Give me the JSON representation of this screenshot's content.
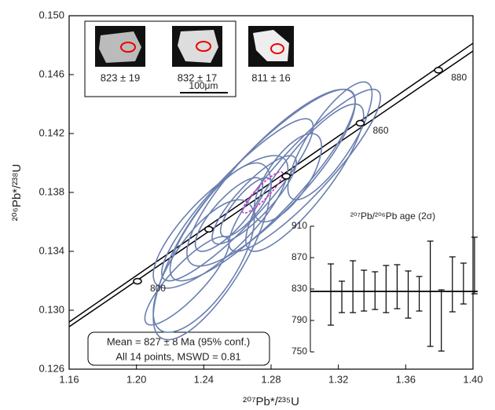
{
  "chart_data": {
    "type": "concordia",
    "x_label": "²⁰⁷Pb*/²³⁵U",
    "y_label": "²⁰⁶Pb*/²³⁸U",
    "xlim": [
      1.16,
      1.4
    ],
    "ylim": [
      0.126,
      0.15
    ],
    "xticks": [
      1.16,
      {
        "value": 1.2,
        "label": "1.20"
      },
      1.24,
      1.28,
      1.32,
      1.36,
      {
        "value": 1.4,
        "label": "1.40"
      }
    ],
    "yticks": [
      0.126,
      {
        "value": 0.13,
        "label": "0.130"
      },
      0.134,
      0.138,
      0.142,
      0.146,
      {
        "value": 0.15,
        "label": "0.150"
      }
    ],
    "concordia": {
      "upper": {
        "x": [
          1.16,
          1.4
        ],
        "y": [
          0.1292,
          0.14813
        ]
      },
      "lower": {
        "x": [
          1.16,
          1.4
        ],
        "y": [
          0.12888,
          0.1476
        ]
      }
    },
    "markers": {
      "x": [
        1.2006,
        1.243,
        1.289,
        1.333,
        1.3795
      ],
      "y": [
        0.13197,
        0.1355,
        0.1391,
        0.1427,
        0.1463
      ],
      "labels": [
        800,
        null,
        null,
        860,
        880
      ]
    },
    "ellipses": {
      "color": "#6b7fb0",
      "x": [
        1.275,
        1.28,
        1.26,
        1.25,
        1.245,
        1.24,
        1.3,
        1.315,
        1.27,
        1.255,
        1.29,
        1.23,
        1.265,
        1.3
      ],
      "y": [
        0.1385,
        0.139,
        0.1375,
        0.136,
        0.134,
        0.133,
        0.139,
        0.1415,
        0.1375,
        0.1365,
        0.139,
        0.132,
        0.137,
        0.1395
      ],
      "sx": [
        0.055,
        0.05,
        0.045,
        0.04,
        0.035,
        0.03,
        0.035,
        0.025,
        0.025,
        0.02,
        0.02,
        0.025,
        0.015,
        0.045
      ],
      "sy": [
        0.0065,
        0.006,
        0.0055,
        0.0045,
        0.006,
        0.0045,
        0.005,
        0.004,
        0.003,
        0.0025,
        0.003,
        0.003,
        0.002,
        0.0055
      ],
      "rho": [
        0.88,
        0.85,
        0.9,
        0.8,
        0.75,
        0.7,
        0.85,
        0.8,
        0.85,
        0.8,
        0.7,
        0.85,
        0.8,
        0.9
      ]
    },
    "mean_ellipse": {
      "color": "#cc33cc",
      "x": 1.275,
      "y": 0.138,
      "sx": 0.012,
      "sy": 0.0014,
      "rho": 0.9
    },
    "mean_box": [
      "Mean = 827 ± 8 Ma (95% conf.)",
      "All 14 points,   MSWD = 0.81"
    ],
    "photos": {
      "labels": [
        "823 ± 19",
        "832 ± 17",
        "811 ± 16"
      ],
      "scale": "100μm"
    },
    "inset": {
      "type": "errorbar",
      "title": "²⁰⁷Pb/²⁰⁶Pb age (2σ)",
      "ylim": [
        750,
        910
      ],
      "yticks": [
        750,
        790,
        830,
        870,
        910
      ],
      "values": [
        823,
        820,
        833,
        828,
        828,
        830,
        833,
        823,
        824,
        824,
        790,
        836,
        837,
        860
      ],
      "errors": [
        39,
        20,
        33,
        26,
        24,
        30,
        28,
        30,
        22,
        67,
        39,
        35,
        26,
        36
      ],
      "mean": 827
    }
  }
}
